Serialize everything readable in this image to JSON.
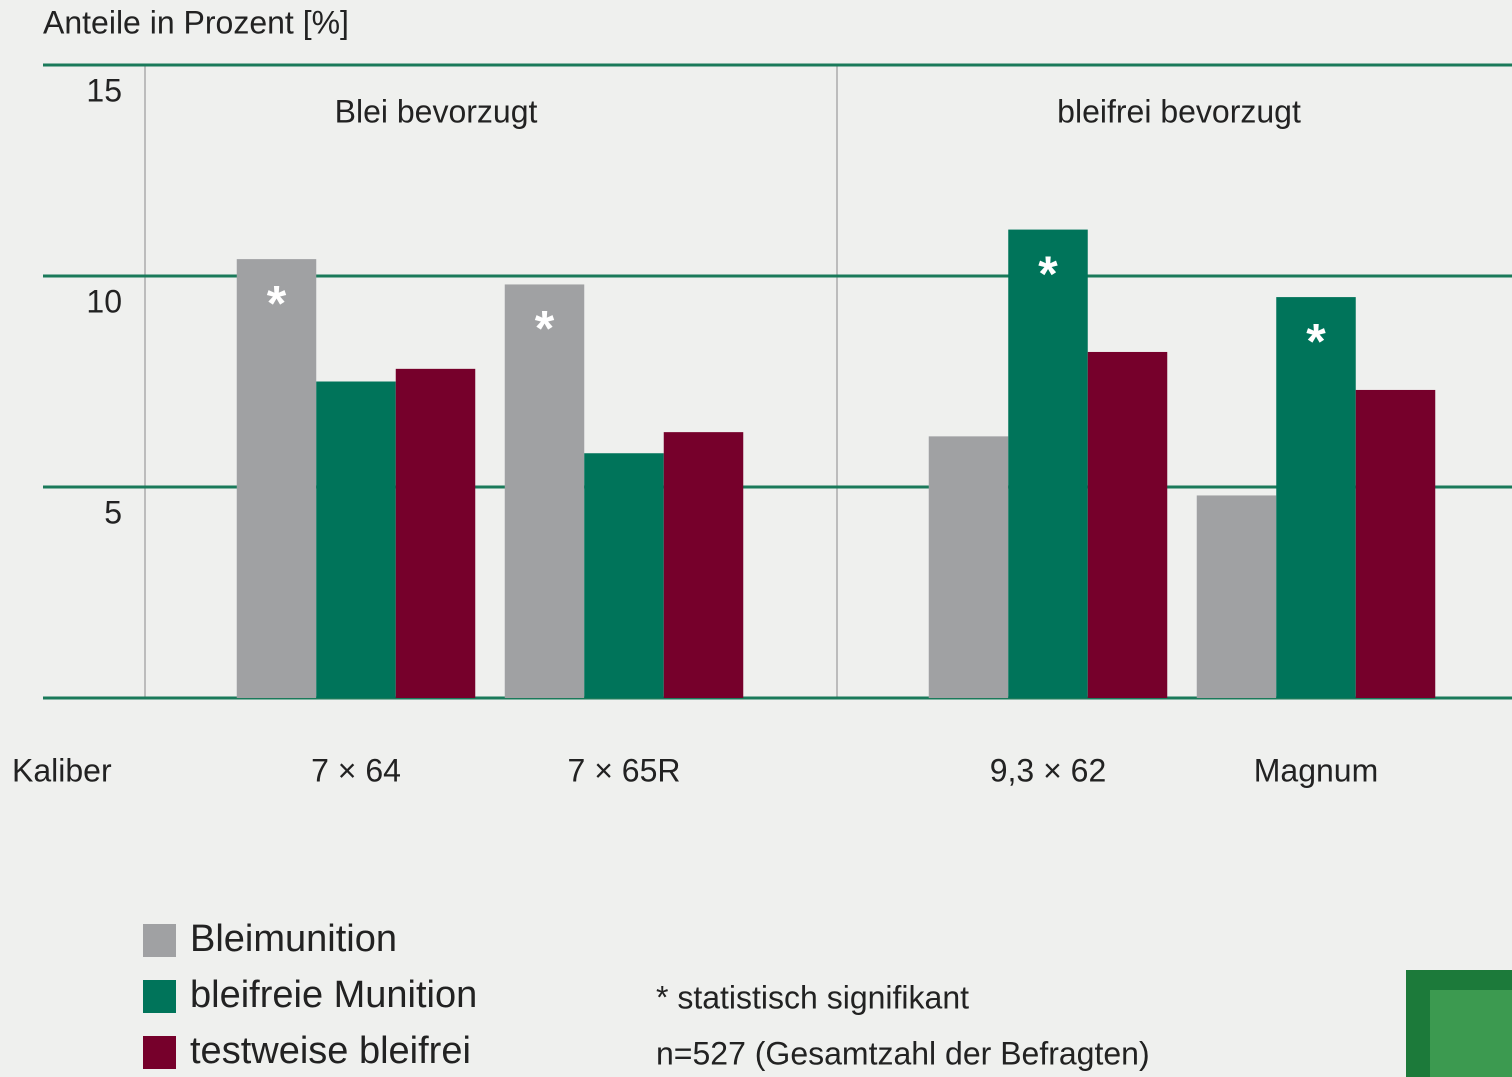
{
  "chart_data": {
    "type": "bar",
    "y_label": "Anteile in Prozent [%]",
    "x_label": "Kaliber",
    "groups": [
      "Blei bevorzugt",
      "bleifrei bevorzugt"
    ],
    "categories": [
      "7 × 64",
      "7 × 65R",
      "9,3 × 62",
      "Magnum"
    ],
    "series": [
      {
        "name": "Bleimunition",
        "color": "#a0a1a3",
        "values": [
          10.4,
          9.8,
          6.2,
          4.8
        ]
      },
      {
        "name": "bleifreie Munition",
        "color": "#00745a",
        "values": [
          7.5,
          5.8,
          11.1,
          9.5
        ]
      },
      {
        "name": "testweise bleifrei",
        "color": "#76002b",
        "values": [
          7.8,
          6.3,
          8.2,
          7.3
        ]
      }
    ],
    "annotations": [
      {
        "text": "*",
        "category": 0,
        "series": 0
      },
      {
        "text": "*",
        "category": 1,
        "series": 0
      },
      {
        "text": "*",
        "category": 2,
        "series": 1
      },
      {
        "text": "*",
        "category": 3,
        "series": 1
      }
    ],
    "notes": [
      "* statistisch signifikant",
      "n=527 (Gesamtzahl der Befragten)"
    ],
    "ylim": [
      0,
      15
    ],
    "yticks": [
      5,
      10,
      15
    ],
    "grid": true,
    "grid_color": "#1a7a5a"
  }
}
